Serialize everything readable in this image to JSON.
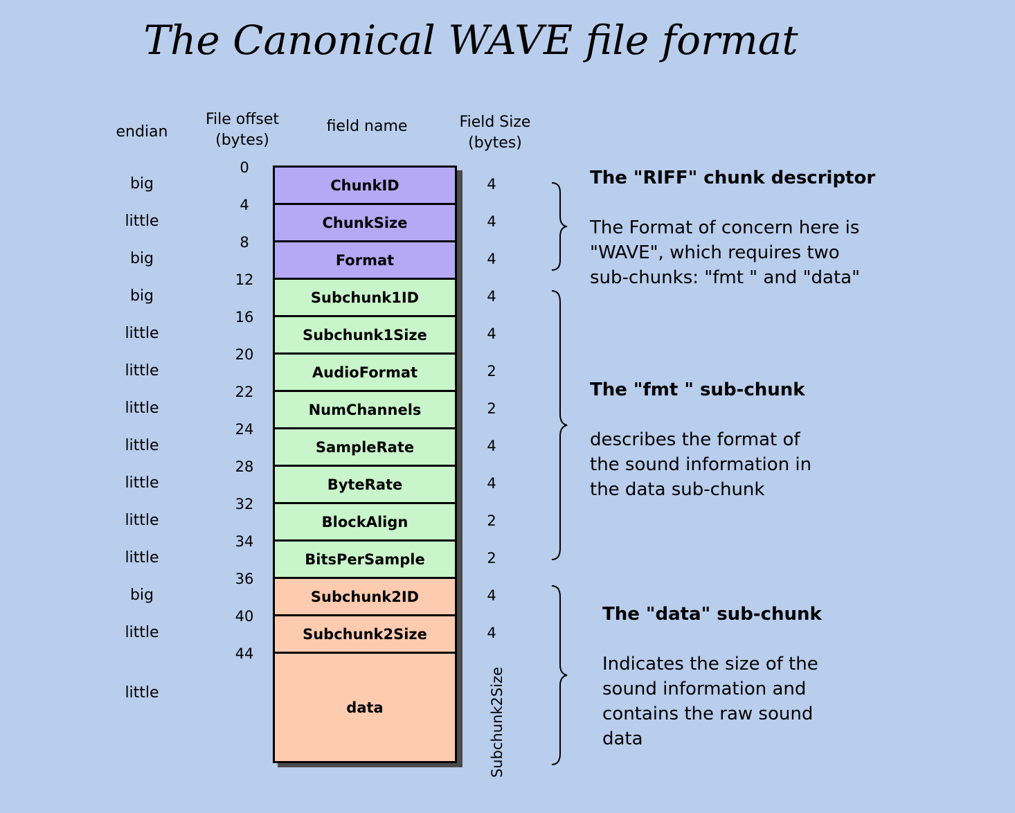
{
  "title": "The Canonical WAVE file format",
  "headers": {
    "endian": "endian",
    "offset_line1": "File offset",
    "offset_line2": "(bytes)",
    "field_name": "field name",
    "size_line1": "Field Size",
    "size_line2": "(bytes)"
  },
  "fields": [
    {
      "name": "ChunkID",
      "endian": "big",
      "size": "4",
      "chunk": "riff"
    },
    {
      "name": "ChunkSize",
      "endian": "little",
      "size": "4",
      "chunk": "riff"
    },
    {
      "name": "Format",
      "endian": "big",
      "size": "4",
      "chunk": "riff"
    },
    {
      "name": "Subchunk1ID",
      "endian": "big",
      "size": "4",
      "chunk": "fmt"
    },
    {
      "name": "Subchunk1Size",
      "endian": "little",
      "size": "4",
      "chunk": "fmt"
    },
    {
      "name": "AudioFormat",
      "endian": "little",
      "size": "2",
      "chunk": "fmt"
    },
    {
      "name": "NumChannels",
      "endian": "little",
      "size": "2",
      "chunk": "fmt"
    },
    {
      "name": "SampleRate",
      "endian": "little",
      "size": "4",
      "chunk": "fmt"
    },
    {
      "name": "ByteRate",
      "endian": "little",
      "size": "4",
      "chunk": "fmt"
    },
    {
      "name": "BlockAlign",
      "endian": "little",
      "size": "2",
      "chunk": "fmt"
    },
    {
      "name": "BitsPerSample",
      "endian": "little",
      "size": "2",
      "chunk": "fmt"
    },
    {
      "name": "Subchunk2ID",
      "endian": "big",
      "size": "4",
      "chunk": "data"
    },
    {
      "name": "Subchunk2Size",
      "endian": "little",
      "size": "4",
      "chunk": "data"
    },
    {
      "name": "data",
      "endian": "little",
      "size": "Subchunk2Size",
      "chunk": "data"
    }
  ],
  "offsets": [
    "0",
    "4",
    "8",
    "12",
    "16",
    "20",
    "22",
    "24",
    "28",
    "32",
    "34",
    "36",
    "40",
    "44"
  ],
  "chunks": {
    "riff": {
      "heading": "The \"RIFF\" chunk descriptor",
      "desc": [
        "The Format of concern here is",
        "\"WAVE\", which requires two",
        "sub-chunks: \"fmt \" and \"data\""
      ]
    },
    "fmt": {
      "heading": "The \"fmt \" sub-chunk",
      "desc": [
        "describes the format of",
        "the sound information in",
        "the data sub-chunk"
      ]
    },
    "data": {
      "heading": "The \"data\" sub-chunk",
      "desc": [
        "Indicates the size of the",
        "sound information and",
        "contains the raw sound",
        "data"
      ]
    }
  },
  "colors": {
    "background": "#b9cdec",
    "riff": "#b5a9f6",
    "fmt": "#c9f5ca",
    "data": "#fdcbb0"
  }
}
